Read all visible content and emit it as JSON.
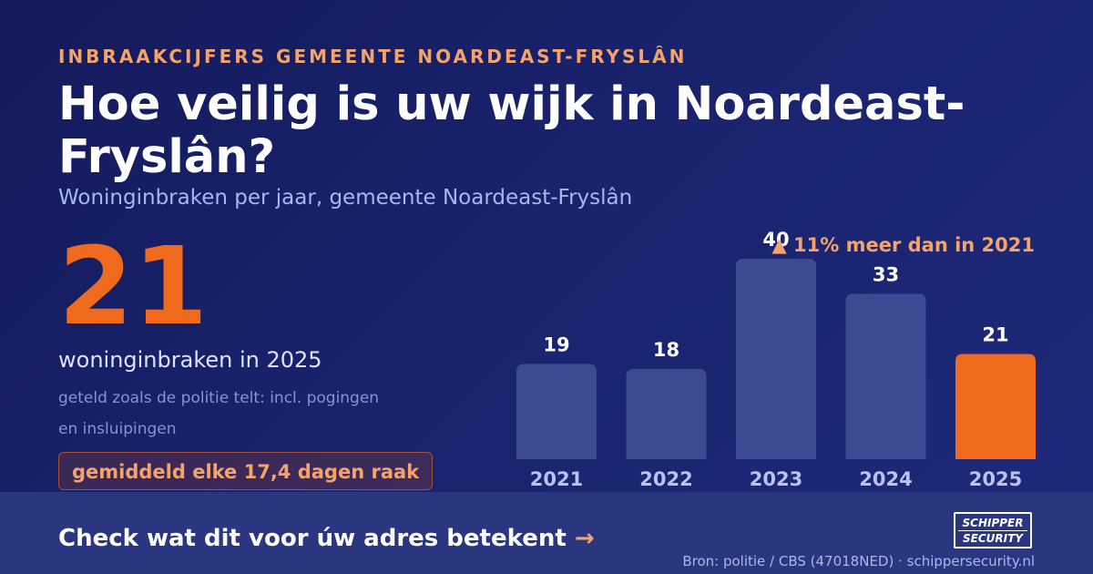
{
  "eyebrow": "INBRAAKCIJFERS GEMEENTE NOARDEAST-FRYSLÂN",
  "title": "Hoe veilig is uw wijk in Noardeast-Fryslân?",
  "subtitle": "Woninginbraken per jaar, gemeente Noardeast-Fryslân",
  "highlight": {
    "value": "21",
    "caption": "woninginbraken in 2025",
    "note": "geteld zoals de politie telt: incl. pogingen en insluipingen",
    "frequency": "gemiddeld elke 17,4 dagen raak"
  },
  "chart_data": {
    "type": "bar",
    "categories": [
      "2021",
      "2022",
      "2023",
      "2024",
      "2025"
    ],
    "values": [
      19,
      18,
      40,
      33,
      21
    ],
    "annotation": "▲ 11% meer dan in 2021",
    "highlight_category": "2025",
    "ylim": [
      0,
      40
    ]
  },
  "colors": {
    "bar": "#3b4a92",
    "bar_highlight": "#ef6a1d",
    "accent": "#f4a36a",
    "background": "#1a2470"
  },
  "footer": {
    "cta": "Check wat dit voor úw adres betekent",
    "cta_arrow": "→",
    "logo_line1": "SCHIPPER",
    "logo_line2": "SECURITY",
    "source": "Bron: politie / CBS (47018NED) · schippersecurity.nl"
  }
}
